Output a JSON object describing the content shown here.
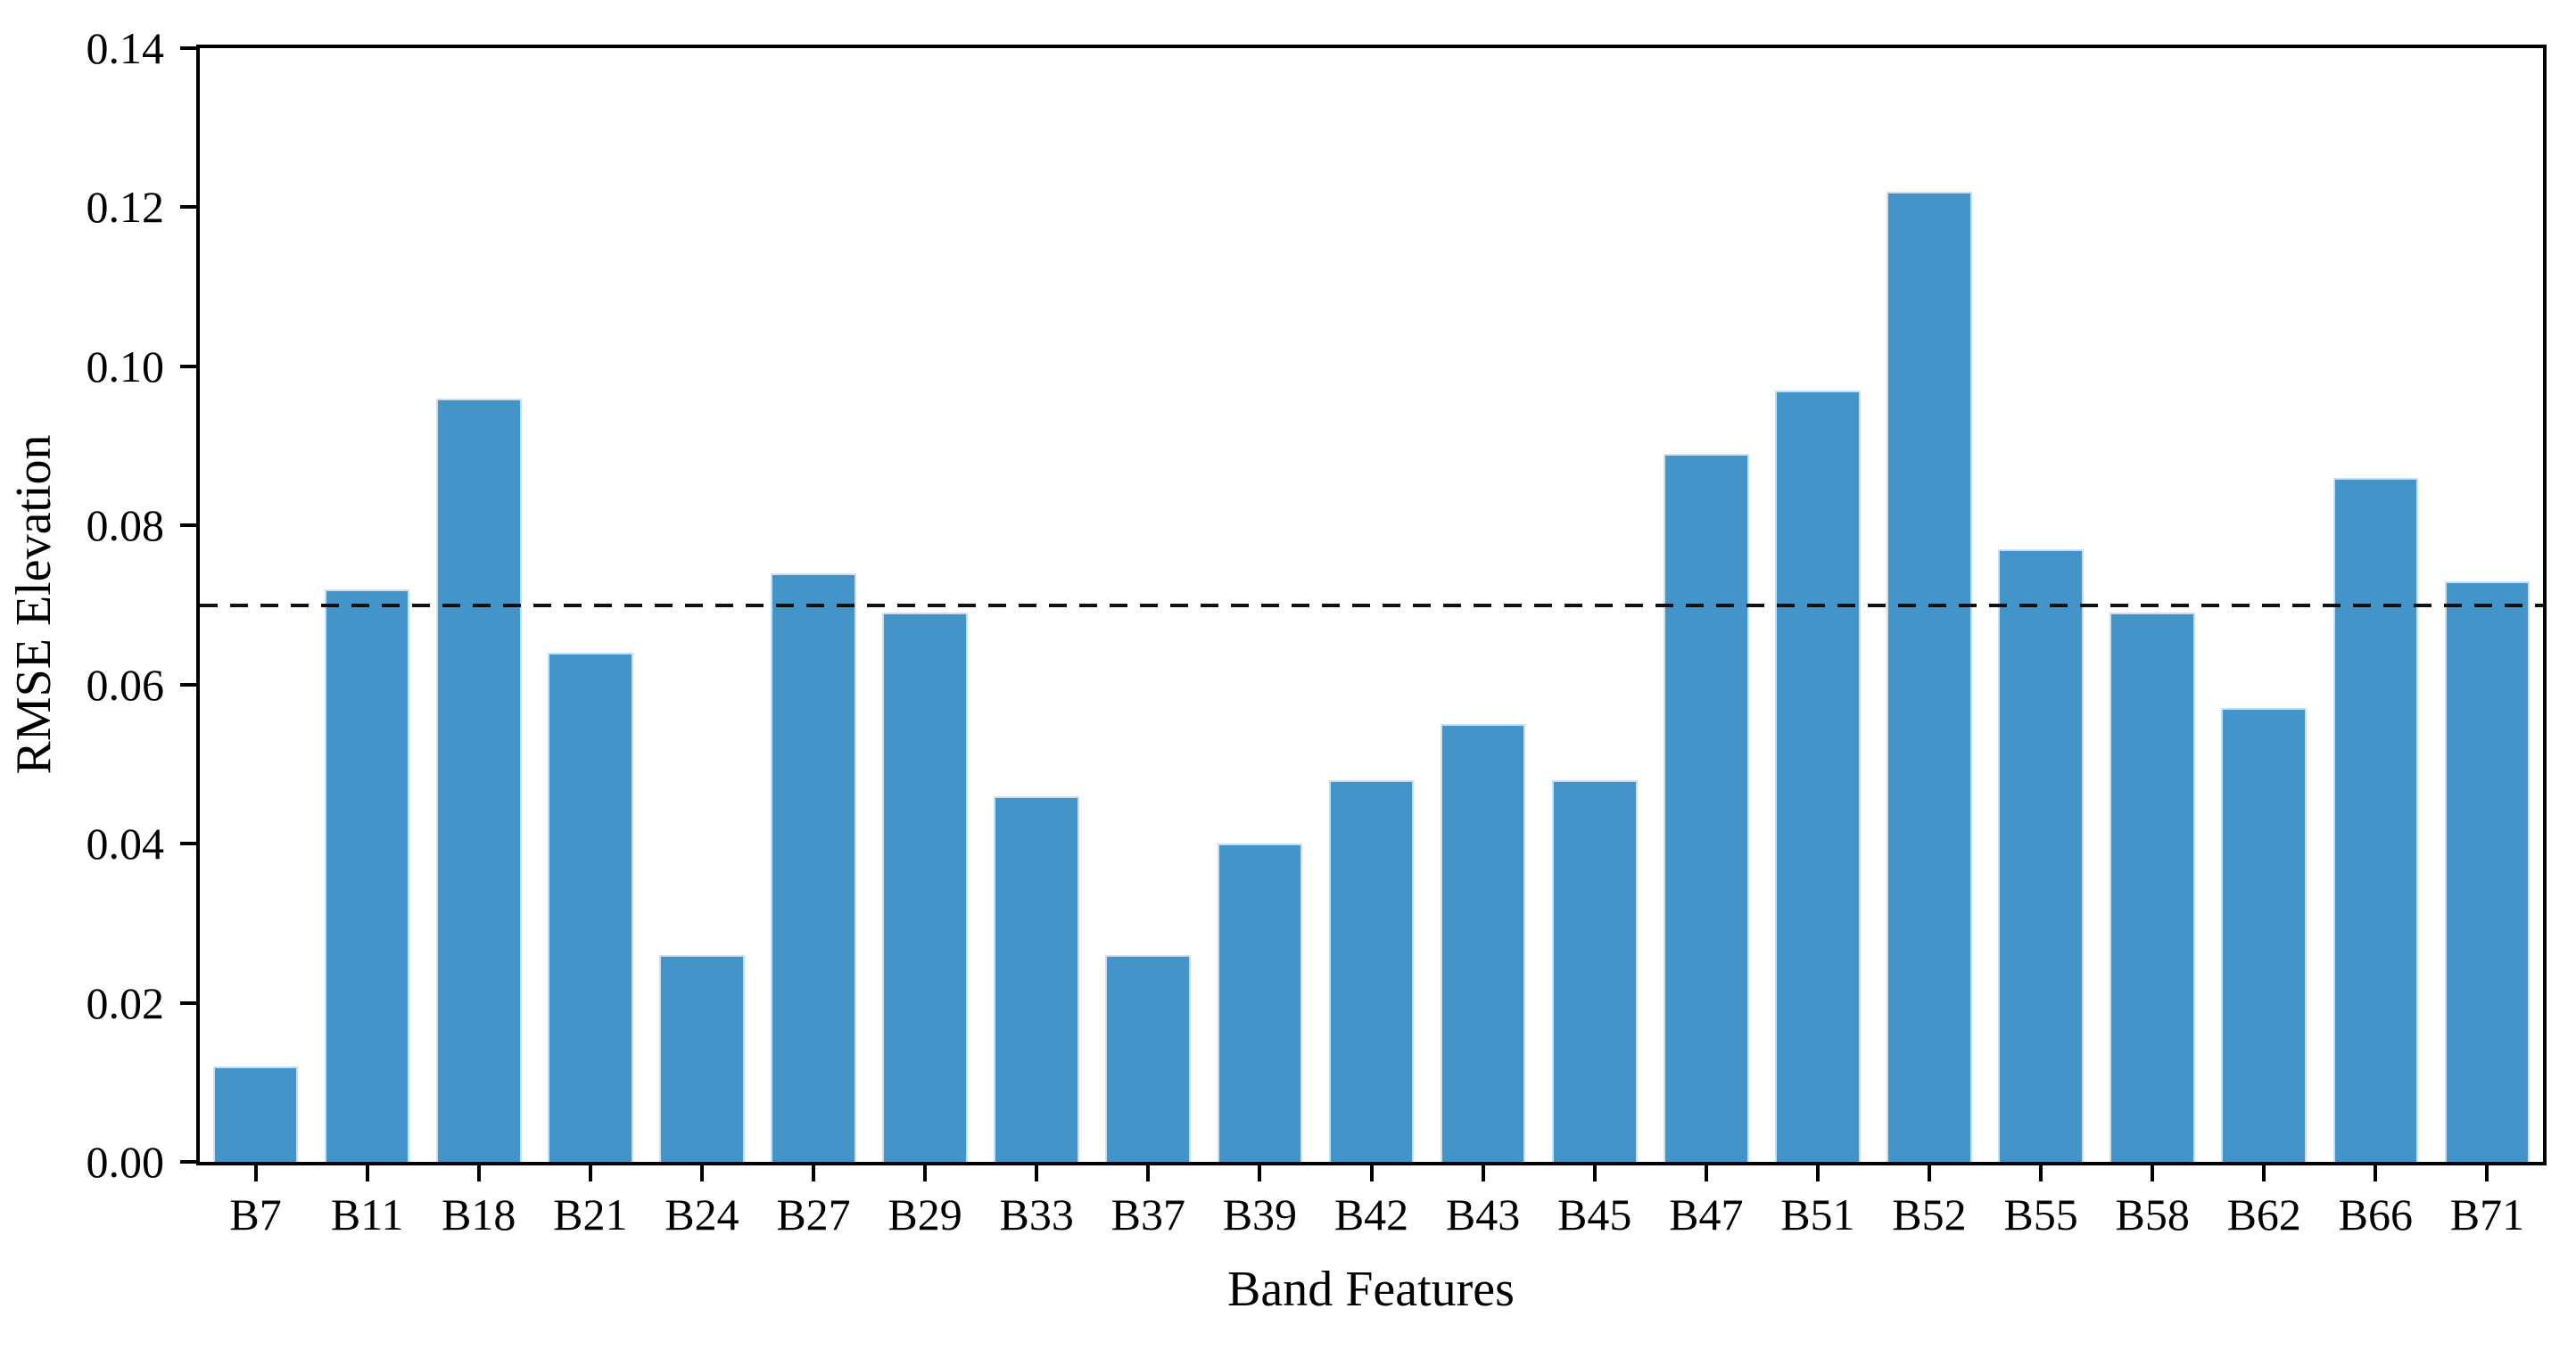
{
  "figure": {
    "background": "#ffffff"
  },
  "chart_data": {
    "type": "bar",
    "title": "",
    "xlabel": "Band Features",
    "ylabel": "RMSE Elevation",
    "categories": [
      "B7",
      "B11",
      "B18",
      "B21",
      "B24",
      "B27",
      "B29",
      "B33",
      "B37",
      "B39",
      "B42",
      "B43",
      "B45",
      "B47",
      "B51",
      "B52",
      "B55",
      "B58",
      "B62",
      "B66",
      "B71"
    ],
    "values": [
      0.012,
      0.072,
      0.096,
      0.064,
      0.026,
      0.074,
      0.069,
      0.046,
      0.026,
      0.04,
      0.048,
      0.055,
      0.048,
      0.089,
      0.097,
      0.122,
      0.077,
      0.069,
      0.057,
      0.086,
      0.073
    ],
    "ylim": [
      0.0,
      0.14
    ],
    "yticks": [
      "0.00",
      "0.02",
      "0.04",
      "0.06",
      "0.08",
      "0.10",
      "0.12",
      "0.14"
    ],
    "threshold_line": 0.07,
    "threshold_style": "dashed",
    "grid": false,
    "legend_position": "none",
    "bar_color": "#4294c9",
    "bar_edge_color": "#c9dff0",
    "threshold_color": "#111111",
    "axis_color": "#000000"
  }
}
